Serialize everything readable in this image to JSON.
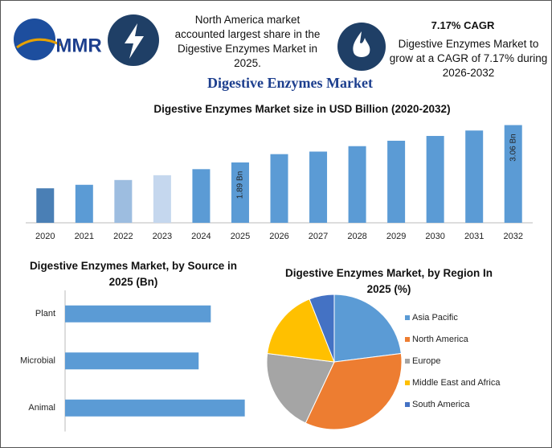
{
  "header": {
    "logo": "MMR",
    "share_note": "North America market accounted largest share in the Digestive Enzymes Market in 2025.",
    "cagr_title": "7.17% CAGR",
    "cagr_note": "Digestive Enzymes Market to grow at a CAGR of 7.17% during 2026-2032",
    "title": "Digestive Enzymes Market"
  },
  "chart_data": [
    {
      "type": "bar",
      "title": "Digestive Enzymes Market size in USD Billion (2020-2032)",
      "categories": [
        "2020",
        "2021",
        "2022",
        "2023",
        "2024",
        "2025",
        "2026",
        "2027",
        "2028",
        "2029",
        "2030",
        "2031",
        "2032"
      ],
      "values": [
        1.08,
        1.19,
        1.34,
        1.49,
        1.68,
        1.89,
        2.15,
        2.23,
        2.4,
        2.57,
        2.72,
        2.89,
        3.06
      ],
      "value_labels": [
        null,
        null,
        null,
        null,
        null,
        "1.89 Bn",
        null,
        null,
        null,
        null,
        null,
        null,
        "3.06 Bn"
      ],
      "colors": [
        "#4a7fb5",
        "#5b9bd5",
        "#9dbde0",
        "#c5d7ee",
        "#5b9bd5",
        "#5b9bd5",
        "#5b9bd5",
        "#5b9bd5",
        "#5b9bd5",
        "#5b9bd5",
        "#5b9bd5",
        "#5b9bd5",
        "#5b9bd5"
      ],
      "ylim": [
        0,
        3.3
      ]
    },
    {
      "type": "barh",
      "title": "Digestive Enzymes Market, by Source in 2025 (Bn)",
      "categories": [
        "Plant",
        "Microbial",
        "Animal"
      ],
      "values": [
        0.6,
        0.55,
        0.74
      ],
      "color": "#5b9bd5",
      "xlim": [
        0,
        0.9
      ]
    },
    {
      "type": "pie",
      "title": "Digestive Enzymes Market, by Region In 2025 (%)",
      "categories": [
        "Asia Pacific",
        "North America",
        "Europe",
        "Middle East and Africa",
        "South America"
      ],
      "values": [
        23,
        34,
        20,
        17,
        6
      ],
      "colors": [
        "#5b9bd5",
        "#ed7d31",
        "#a5a5a5",
        "#ffc000",
        "#4472c4"
      ],
      "legend": "right"
    }
  ]
}
